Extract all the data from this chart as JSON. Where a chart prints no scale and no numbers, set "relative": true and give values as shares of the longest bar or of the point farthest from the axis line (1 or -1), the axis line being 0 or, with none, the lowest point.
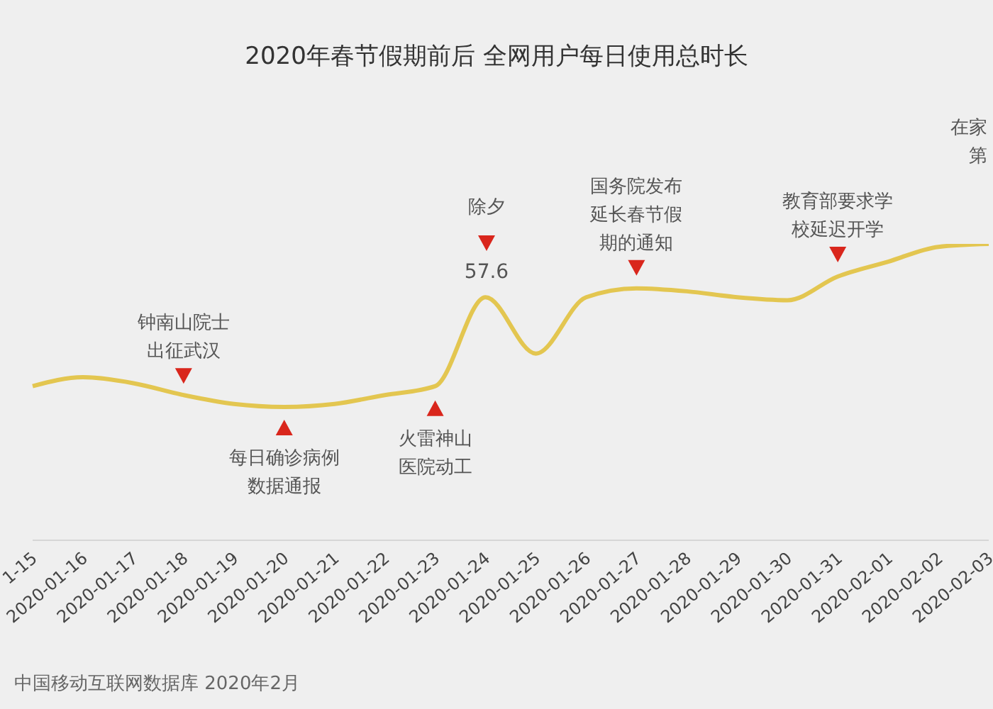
{
  "chart_data": {
    "type": "line",
    "title": "2020年春节假期前后 全网用户每日使用总时长",
    "categories": [
      "1-15",
      "2020-01-16",
      "2020-01-17",
      "2020-01-18",
      "2020-01-19",
      "2020-01-20",
      "2020-01-21",
      "2020-01-22",
      "2020-01-23",
      "2020-01-24",
      "2020-01-25",
      "2020-01-26",
      "2020-01-27",
      "2020-01-28",
      "2020-01-29",
      "2020-01-30",
      "2020-01-31",
      "2020-02-01",
      "2020-02-02",
      "2020-02-03"
    ],
    "relative": true,
    "series": [
      {
        "color": "#e3c650",
        "values": [
          0.52,
          0.55,
          0.53,
          0.49,
          0.46,
          0.45,
          0.46,
          0.49,
          0.52,
          0.82,
          0.63,
          0.82,
          0.85,
          0.84,
          0.82,
          0.81,
          0.89,
          0.94,
          0.99,
          1.0
        ]
      }
    ],
    "marker": "none",
    "grid": false,
    "legend": false,
    "annotations": [
      {
        "text": "钟南山院士出征武汉",
        "x": "2020-01-18",
        "y": 0.49
      },
      {
        "text": "每日确诊病例数据通报",
        "x": "2020-01-20",
        "y": 0.45
      },
      {
        "text": "火雷神山医院动工",
        "x": "2020-01-23",
        "y": 0.52
      },
      {
        "text": "国务院发布延长春节假期的通知",
        "x": "2020-01-27",
        "y": 0.85
      },
      {
        "text": "教育部要求学校延迟开学",
        "x": "2020-01-31",
        "y": 0.89
      },
      "除夕",
      "57.6",
      "在家第",
      "中国移动互联网数据库 2020年2月"
    ]
  }
}
